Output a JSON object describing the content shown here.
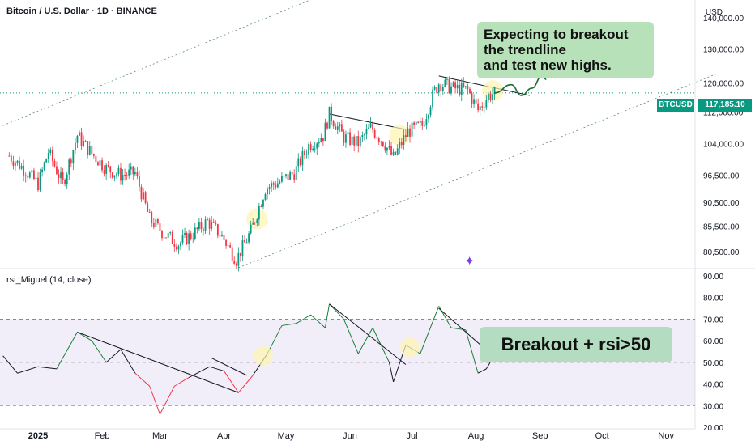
{
  "header": {
    "symbol_title": "Bitcoin / U.S. Dollar · 1D · BINANCE",
    "currency": "USD"
  },
  "rsi_panel": {
    "title": "rsi_Miguel (14, close)"
  },
  "price_tag": {
    "symbol": "BTCUSD",
    "value": "117,185.10"
  },
  "annotations": {
    "callout_top": "Expecting to breakout\nthe trendline\nand test new highs.",
    "callout_bottom": "Breakout + rsi>50"
  },
  "colors": {
    "up": "#089981",
    "down": "#f23645",
    "rsi_band": "#7e57c2",
    "callout_bg": "#b7e1b9"
  },
  "chart_data": [
    {
      "type": "candlestick",
      "title": "Bitcoin / U.S. Dollar · 1D · BINANCE",
      "y_scale": "log",
      "ylim": [
        77500,
        146000
      ],
      "x_ticks": [
        "2025",
        "Feb",
        "Mar",
        "Apr",
        "May",
        "Jun",
        "Jul",
        "Aug",
        "Sep",
        "Oct",
        "Nov"
      ],
      "y_ticks": [
        {
          "v": 140000,
          "label": "140,000.00"
        },
        {
          "v": 130000,
          "label": "130,000.00"
        },
        {
          "v": 120000,
          "label": "120,000.00"
        },
        {
          "v": 112000,
          "label": "112,000.00"
        },
        {
          "v": 104000,
          "label": "104,000.00"
        },
        {
          "v": 96500,
          "label": "96,500.00"
        },
        {
          "v": 90500,
          "label": "90,500.00"
        },
        {
          "v": 85500,
          "label": "85,500.00"
        },
        {
          "v": 80500,
          "label": "80,500.00"
        }
      ],
      "last_price": 117185.1,
      "close_path": [
        [
          "2024-12-18",
          101000
        ],
        [
          "2024-12-25",
          98000
        ],
        [
          "2025-01-01",
          94500
        ],
        [
          "2025-01-06",
          102000
        ],
        [
          "2025-01-13",
          94500
        ],
        [
          "2025-01-20",
          106000
        ],
        [
          "2025-01-27",
          101500
        ],
        [
          "2025-02-03",
          98000
        ],
        [
          "2025-02-10",
          96500
        ],
        [
          "2025-02-17",
          97000
        ],
        [
          "2025-02-24",
          87000
        ],
        [
          "2025-03-03",
          84000
        ],
        [
          "2025-03-10",
          82000
        ],
        [
          "2025-03-17",
          84000
        ],
        [
          "2025-03-24",
          86500
        ],
        [
          "2025-03-31",
          83500
        ],
        [
          "2025-04-07",
          79000
        ],
        [
          "2025-04-14",
          84500
        ],
        [
          "2025-04-21",
          93500
        ],
        [
          "2025-04-28",
          95000
        ],
        [
          "2025-05-05",
          97000
        ],
        [
          "2025-05-12",
          103500
        ],
        [
          "2025-05-19",
          106000
        ],
        [
          "2025-05-22",
          111500
        ],
        [
          "2025-05-29",
          105500
        ],
        [
          "2025-06-05",
          104000
        ],
        [
          "2025-06-11",
          108000
        ],
        [
          "2025-06-17",
          104500
        ],
        [
          "2025-06-22",
          100500
        ],
        [
          "2025-06-29",
          107000
        ],
        [
          "2025-07-06",
          108500
        ],
        [
          "2025-07-11",
          116500
        ],
        [
          "2025-07-14",
          120000
        ],
        [
          "2025-07-21",
          118500
        ],
        [
          "2025-07-28",
          118000
        ],
        [
          "2025-08-02",
          112500
        ],
        [
          "2025-08-07",
          116500
        ],
        [
          "2025-08-10",
          117185
        ]
      ],
      "projection": [
        [
          "2025-08-10",
          117185
        ],
        [
          "2025-08-18",
          119500
        ],
        [
          "2025-08-23",
          116500
        ],
        [
          "2025-08-28",
          118500
        ],
        [
          "2025-09-02",
          122000
        ],
        [
          "2025-09-04",
          121000
        ]
      ],
      "trendlines": [
        {
          "from": [
            "2025-04-08",
            77500
          ],
          "to": [
            "2025-11-25",
            122500
          ]
        },
        {
          "from": [
            "2024-12-15",
            108500
          ],
          "to": [
            "2025-08-20",
            178000
          ]
        },
        {
          "from": [
            "2025-05-22",
            111500
          ],
          "to": [
            "2025-06-28",
            107500
          ]
        },
        {
          "from": [
            "2025-07-14",
            122000
          ],
          "to": [
            "2025-08-27",
            116500
          ]
        }
      ]
    },
    {
      "type": "line",
      "title": "rsi_Miguel (14, close)",
      "ylim": [
        20,
        90
      ],
      "y_ticks": [
        90,
        80,
        70,
        60,
        50,
        40,
        30,
        20
      ],
      "band": [
        30,
        70
      ],
      "x": [
        "2024-12-15",
        "2024-12-22",
        "2025-01-01",
        "2025-01-10",
        "2025-01-20",
        "2025-01-27",
        "2025-02-03",
        "2025-02-10",
        "2025-02-17",
        "2025-02-24",
        "2025-03-01",
        "2025-03-08",
        "2025-03-15",
        "2025-03-25",
        "2025-04-01",
        "2025-04-08",
        "2025-04-15",
        "2025-04-22",
        "2025-04-29",
        "2025-05-06",
        "2025-05-13",
        "2025-05-20",
        "2025-05-22",
        "2025-05-29",
        "2025-06-05",
        "2025-06-12",
        "2025-06-20",
        "2025-06-22",
        "2025-06-28",
        "2025-07-05",
        "2025-07-14",
        "2025-07-20",
        "2025-07-27",
        "2025-08-02",
        "2025-08-06",
        "2025-08-11"
      ],
      "values": [
        53,
        45,
        48,
        47,
        64,
        60,
        50,
        56,
        45,
        39,
        26,
        39,
        43,
        48,
        46,
        36,
        44,
        54,
        67,
        68,
        72,
        66,
        77,
        70,
        54,
        66,
        50,
        41,
        58,
        54,
        76,
        66,
        65,
        45,
        47,
        55
      ],
      "trendlines": [
        {
          "from": [
            "2025-01-20",
            64
          ],
          "to": [
            "2025-04-08",
            36
          ]
        },
        {
          "from": [
            "2025-03-26",
            52
          ],
          "to": [
            "2025-04-12",
            44
          ]
        },
        {
          "from": [
            "2025-05-22",
            77
          ],
          "to": [
            "2025-06-28",
            49
          ]
        },
        {
          "from": [
            "2025-07-14",
            75
          ],
          "to": [
            "2025-08-08",
            54
          ]
        }
      ]
    }
  ]
}
